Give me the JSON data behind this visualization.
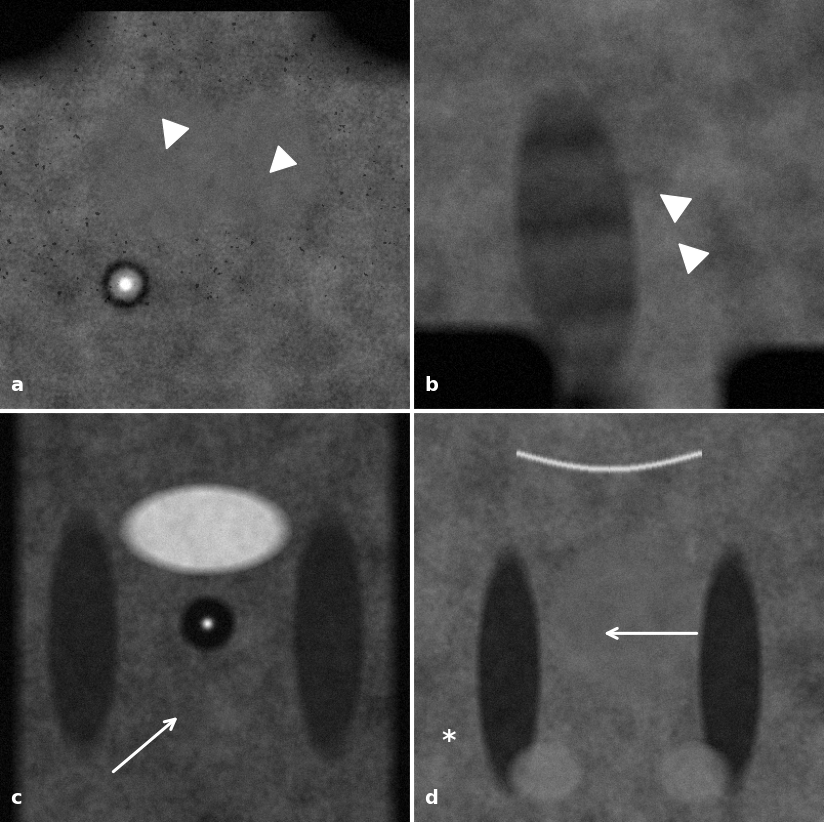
{
  "figure_size": [
    8.24,
    8.22
  ],
  "dpi": 100,
  "background_color": "#ffffff",
  "panel_labels": [
    "a",
    "b",
    "c",
    "d"
  ],
  "label_fontsize": 14,
  "label_color": "#ffffff",
  "arrowhead_color": "#ffffff",
  "arrow_color": "#ffffff",
  "asterisk_color": "#ffffff",
  "asterisk_fontsize": 20,
  "border_linewidth": 3,
  "panel_a": {
    "seed": 42,
    "base_mean": 0.42,
    "base_std": 0.12,
    "smooth_sigma": 2.5
  },
  "panel_b": {
    "seed": 137,
    "base_mean": 0.5,
    "base_std": 0.1,
    "smooth_sigma": 2.5
  },
  "panel_c": {
    "seed": 77,
    "base_mean": 0.28,
    "base_std": 0.1,
    "smooth_sigma": 2.5
  },
  "panel_d": {
    "seed": 201,
    "base_mean": 0.4,
    "base_std": 0.1,
    "smooth_sigma": 2.5
  }
}
